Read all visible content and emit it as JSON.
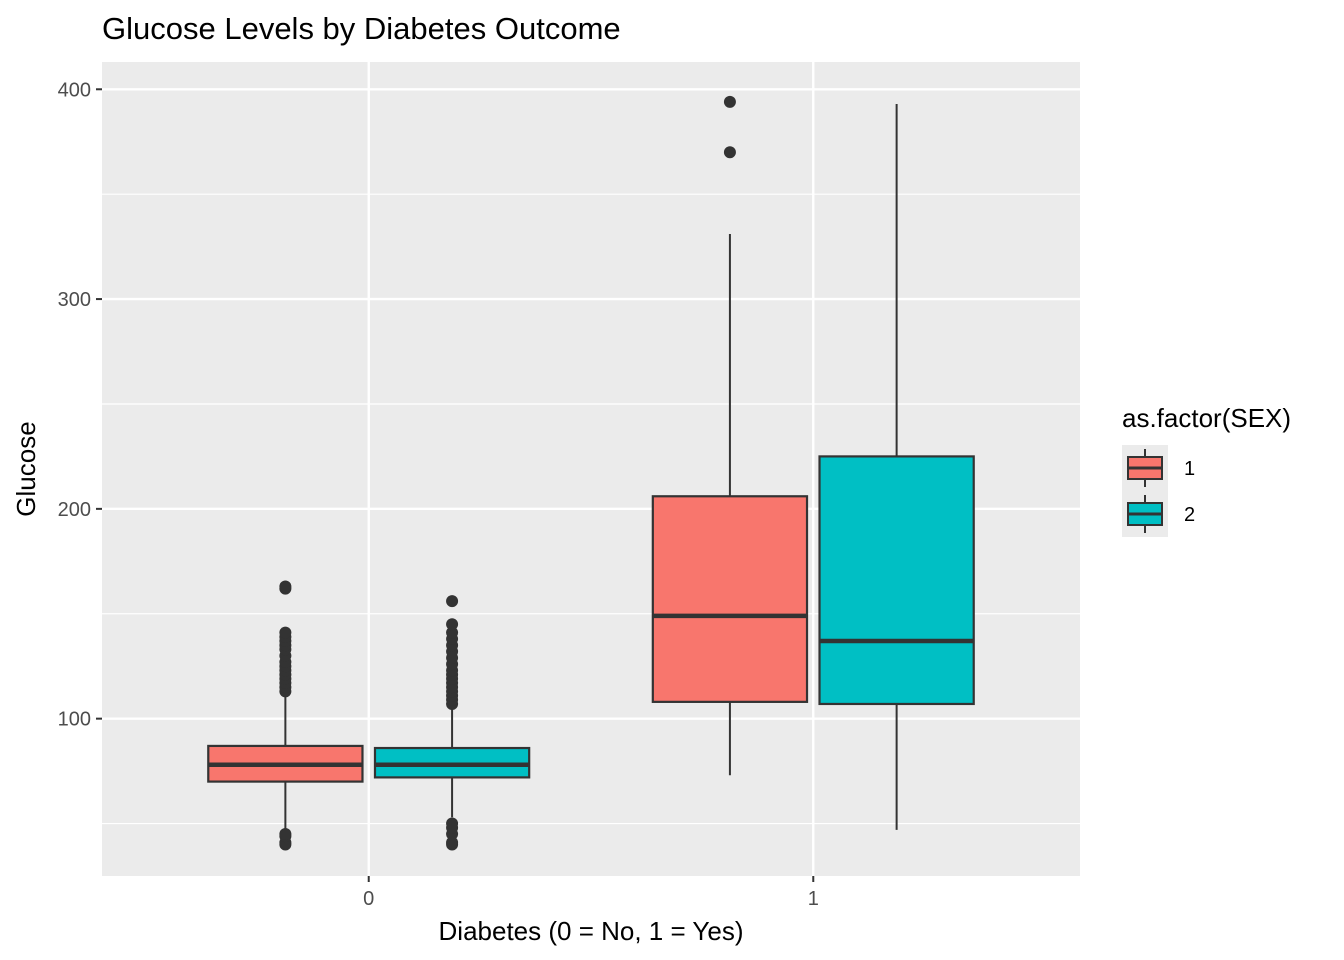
{
  "chart_data": {
    "type": "boxplot",
    "title": "Glucose Levels by Diabetes Outcome",
    "xlabel": "Diabetes (0 = No, 1 = Yes)",
    "ylabel": "Glucose",
    "ylim": [
      25,
      413
    ],
    "yticks": [
      100,
      200,
      300,
      400
    ],
    "categories": [
      "0",
      "1"
    ],
    "grid": true,
    "legend": {
      "title": "as.factor(SEX)",
      "position": "right"
    },
    "series": [
      {
        "name": "1",
        "color": "#F8766D",
        "boxes": [
          {
            "category": "0",
            "whisker_low": 47,
            "q1": 70,
            "median": 78,
            "q3": 87,
            "whisker_high": 111,
            "outliers": [
              40,
              41,
              44,
              45,
              113,
              115,
              117,
              119,
              121,
              123,
              125,
              127,
              130,
              133,
              135,
              137,
              139,
              141,
              162,
              163
            ]
          },
          {
            "category": "1",
            "whisker_low": 73,
            "q1": 108,
            "median": 149,
            "q3": 206,
            "whisker_high": 331,
            "outliers": [
              370,
              394
            ]
          }
        ]
      },
      {
        "name": "2",
        "color": "#00BFC4",
        "boxes": [
          {
            "category": "0",
            "whisker_low": 53,
            "q1": 72,
            "median": 78,
            "q3": 86,
            "whisker_high": 106,
            "outliers": [
              40,
              41,
              45,
              48,
              50,
              107,
              109,
              111,
              113,
              115,
              117,
              119,
              121,
              123,
              126,
              129,
              132,
              135,
              138,
              141,
              145,
              156
            ]
          },
          {
            "category": "1",
            "whisker_low": 47,
            "q1": 107,
            "median": 137,
            "q3": 225,
            "whisker_high": 393,
            "outliers": []
          }
        ]
      }
    ]
  }
}
